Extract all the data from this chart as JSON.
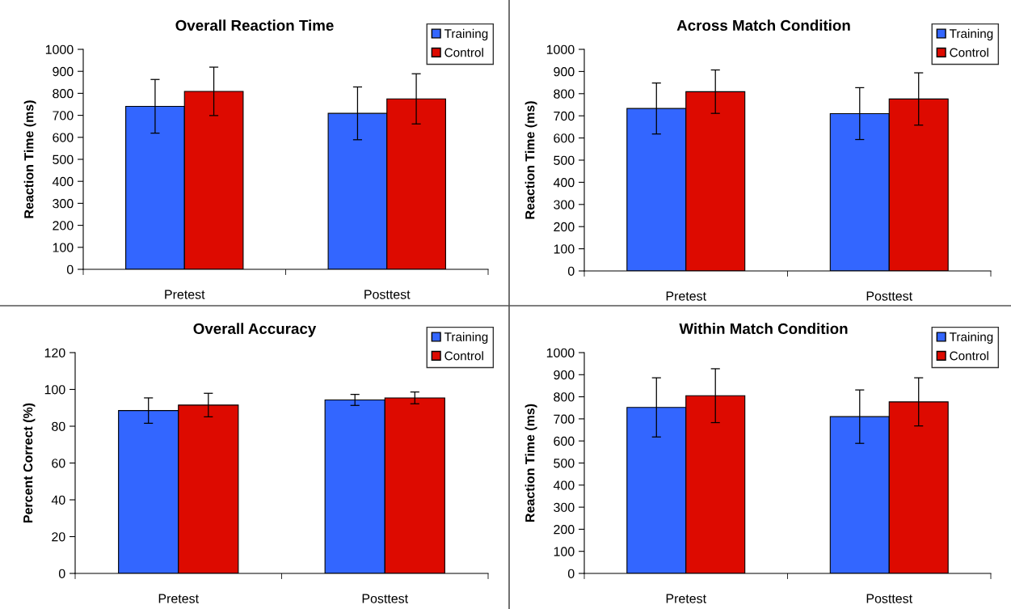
{
  "chart_data": [
    {
      "type": "bar",
      "title": "Overall Reaction Time",
      "ylabel": "Reaction Time (ms)",
      "categories": [
        "Pretest",
        "Posttest"
      ],
      "ylim": [
        0,
        1000
      ],
      "yticks": [
        0,
        100,
        200,
        300,
        400,
        500,
        600,
        700,
        800,
        900,
        1000
      ],
      "grid": false,
      "legend": "top right",
      "series": [
        {
          "name": "Training",
          "color": "#3366ff",
          "values": [
            741,
            709
          ],
          "errors": [
            122,
            120
          ]
        },
        {
          "name": "Control",
          "color": "#dd0a00",
          "values": [
            809,
            775
          ],
          "errors": [
            110,
            114
          ]
        }
      ]
    },
    {
      "type": "bar",
      "title": "Across Match Condition",
      "ylabel": "Reaction Time (ms)",
      "categories": [
        "Pretest",
        "Posttest"
      ],
      "ylim": [
        0,
        1000
      ],
      "yticks": [
        0,
        100,
        200,
        300,
        400,
        500,
        600,
        700,
        800,
        900,
        1000
      ],
      "grid": false,
      "legend": "top right",
      "series": [
        {
          "name": "Training",
          "color": "#3366ff",
          "values": [
            733,
            710
          ],
          "errors": [
            115,
            117
          ]
        },
        {
          "name": "Control",
          "color": "#dd0a00",
          "values": [
            809,
            776
          ],
          "errors": [
            98,
            118
          ]
        }
      ]
    },
    {
      "type": "bar",
      "title": "Overall Accuracy",
      "ylabel": "Percent Correct (%)",
      "categories": [
        "Pretest",
        "Posttest"
      ],
      "ylim": [
        0,
        120
      ],
      "yticks": [
        0,
        20,
        40,
        60,
        80,
        100,
        120
      ],
      "grid": false,
      "legend": "top right",
      "series": [
        {
          "name": "Training",
          "color": "#3366ff",
          "values": [
            88.5,
            94.3
          ],
          "errors": [
            6.9,
            3.0
          ]
        },
        {
          "name": "Control",
          "color": "#dd0a00",
          "values": [
            91.5,
            95.4
          ],
          "errors": [
            6.4,
            3.2
          ]
        }
      ]
    },
    {
      "type": "bar",
      "title": "Within Match Condition",
      "ylabel": "Reaction Time (ms)",
      "categories": [
        "Pretest",
        "Posttest"
      ],
      "ylim": [
        0,
        1000
      ],
      "yticks": [
        0,
        100,
        200,
        300,
        400,
        500,
        600,
        700,
        800,
        900,
        1000
      ],
      "grid": false,
      "legend": "top right",
      "series": [
        {
          "name": "Training",
          "color": "#3366ff",
          "values": [
            752,
            710
          ],
          "errors": [
            134,
            121
          ]
        },
        {
          "name": "Control",
          "color": "#dd0a00",
          "values": [
            805,
            777
          ],
          "errors": [
            122,
            109
          ]
        }
      ]
    }
  ]
}
